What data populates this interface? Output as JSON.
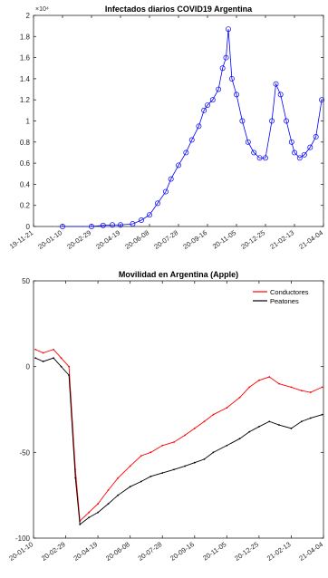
{
  "chart_data": [
    {
      "type": "line",
      "title": "Infectados diarios COVID19 Argentina",
      "exponent_label": "×10⁴",
      "ylim": [
        0,
        20000
      ],
      "yticks": [
        0,
        2000,
        4000,
        6000,
        8000,
        10000,
        12000,
        14000,
        16000,
        18000,
        20000
      ],
      "ytick_labels": [
        "0",
        "0.2",
        "0.4",
        "0.6",
        "0.8",
        "1",
        "1.2",
        "1.4",
        "1.6",
        "1.8",
        "2"
      ],
      "xlim": [
        "2019-11-21",
        "2021-04-04"
      ],
      "xtick_labels": [
        "19-11-21",
        "20-01-10",
        "20-02-29",
        "20-04-19",
        "20-06-08",
        "20-07-28",
        "20-09-16",
        "20-11-05",
        "20-12-25",
        "21-02-13",
        "21-04-04"
      ],
      "grid": false,
      "marker": "circle",
      "color": "#0000ff",
      "series": [
        {
          "x": [
            "2020-01-10",
            "2020-02-29",
            "2020-03-20",
            "2020-04-05",
            "2020-04-19",
            "2020-05-10",
            "2020-05-25",
            "2020-06-08",
            "2020-06-22",
            "2020-07-06",
            "2020-07-15",
            "2020-07-28",
            "2020-08-10",
            "2020-08-20",
            "2020-09-01",
            "2020-09-10",
            "2020-09-16",
            "2020-09-25",
            "2020-10-05",
            "2020-10-12",
            "2020-10-18",
            "2020-10-22",
            "2020-10-28",
            "2020-11-05",
            "2020-11-15",
            "2020-11-25",
            "2020-12-05",
            "2020-12-15",
            "2020-12-25",
            "2021-01-05",
            "2021-01-12",
            "2021-01-20",
            "2021-01-30",
            "2021-02-08",
            "2021-02-13",
            "2021-02-22",
            "2021-03-02",
            "2021-03-12",
            "2021-03-22",
            "2021-04-01"
          ],
          "y": [
            0,
            0,
            100,
            150,
            150,
            250,
            600,
            1100,
            2200,
            3300,
            4500,
            5800,
            7000,
            8200,
            9500,
            11000,
            11500,
            12000,
            13000,
            15000,
            16000,
            18700,
            14000,
            12500,
            10000,
            8000,
            7000,
            6500,
            6500,
            10000,
            13500,
            12500,
            10000,
            8000,
            7000,
            6500,
            6800,
            7500,
            8500,
            12000
          ]
        }
      ]
    },
    {
      "type": "line",
      "title": "Movilidad en Argentina (Apple)",
      "ylim": [
        -100,
        50
      ],
      "yticks": [
        -100,
        -50,
        0,
        50
      ],
      "ytick_labels": [
        "-100",
        "-50",
        "0",
        "50"
      ],
      "xlim": [
        "2020-01-10",
        "2021-04-04"
      ],
      "xtick_labels": [
        "20-01-10",
        "20-02-29",
        "20-04-19",
        "20-06-08",
        "20-07-28",
        "20-09-16",
        "20-11-05",
        "20-12-25",
        "21-02-13",
        "21-04-04"
      ],
      "grid": false,
      "legend": "top-right",
      "series": [
        {
          "name": "Conductores",
          "color": "#ff0000",
          "x": [
            "2020-01-13",
            "2020-01-25",
            "2020-02-10",
            "2020-02-22",
            "2020-03-05",
            "2020-03-15",
            "2020-03-22",
            "2020-04-05",
            "2020-04-19",
            "2020-05-05",
            "2020-05-20",
            "2020-06-08",
            "2020-06-25",
            "2020-07-10",
            "2020-07-28",
            "2020-08-15",
            "2020-09-01",
            "2020-09-16",
            "2020-10-01",
            "2020-10-15",
            "2020-11-05",
            "2020-11-25",
            "2020-12-10",
            "2020-12-25",
            "2021-01-10",
            "2021-01-25",
            "2021-02-13",
            "2021-03-01",
            "2021-03-15",
            "2021-04-02"
          ],
          "y": [
            10,
            8,
            10,
            5,
            0,
            -60,
            -90,
            -85,
            -80,
            -72,
            -65,
            -58,
            -52,
            -50,
            -46,
            -44,
            -40,
            -36,
            -32,
            -28,
            -24,
            -18,
            -12,
            -8,
            -6,
            -10,
            -12,
            -14,
            -15,
            -12
          ]
        },
        {
          "name": "Peatones",
          "color": "#000000",
          "x": [
            "2020-01-13",
            "2020-01-25",
            "2020-02-10",
            "2020-02-22",
            "2020-03-05",
            "2020-03-15",
            "2020-03-22",
            "2020-04-05",
            "2020-04-19",
            "2020-05-05",
            "2020-05-20",
            "2020-06-08",
            "2020-06-25",
            "2020-07-10",
            "2020-07-28",
            "2020-08-15",
            "2020-09-01",
            "2020-09-16",
            "2020-10-01",
            "2020-10-15",
            "2020-11-05",
            "2020-11-25",
            "2020-12-10",
            "2020-12-25",
            "2021-01-10",
            "2021-01-25",
            "2021-02-13",
            "2021-03-01",
            "2021-03-15",
            "2021-04-02"
          ],
          "y": [
            5,
            3,
            5,
            0,
            -5,
            -65,
            -92,
            -88,
            -85,
            -80,
            -75,
            -70,
            -67,
            -64,
            -62,
            -60,
            -58,
            -56,
            -54,
            -50,
            -46,
            -42,
            -38,
            -35,
            -32,
            -34,
            -36,
            -32,
            -30,
            -28
          ]
        }
      ]
    }
  ]
}
